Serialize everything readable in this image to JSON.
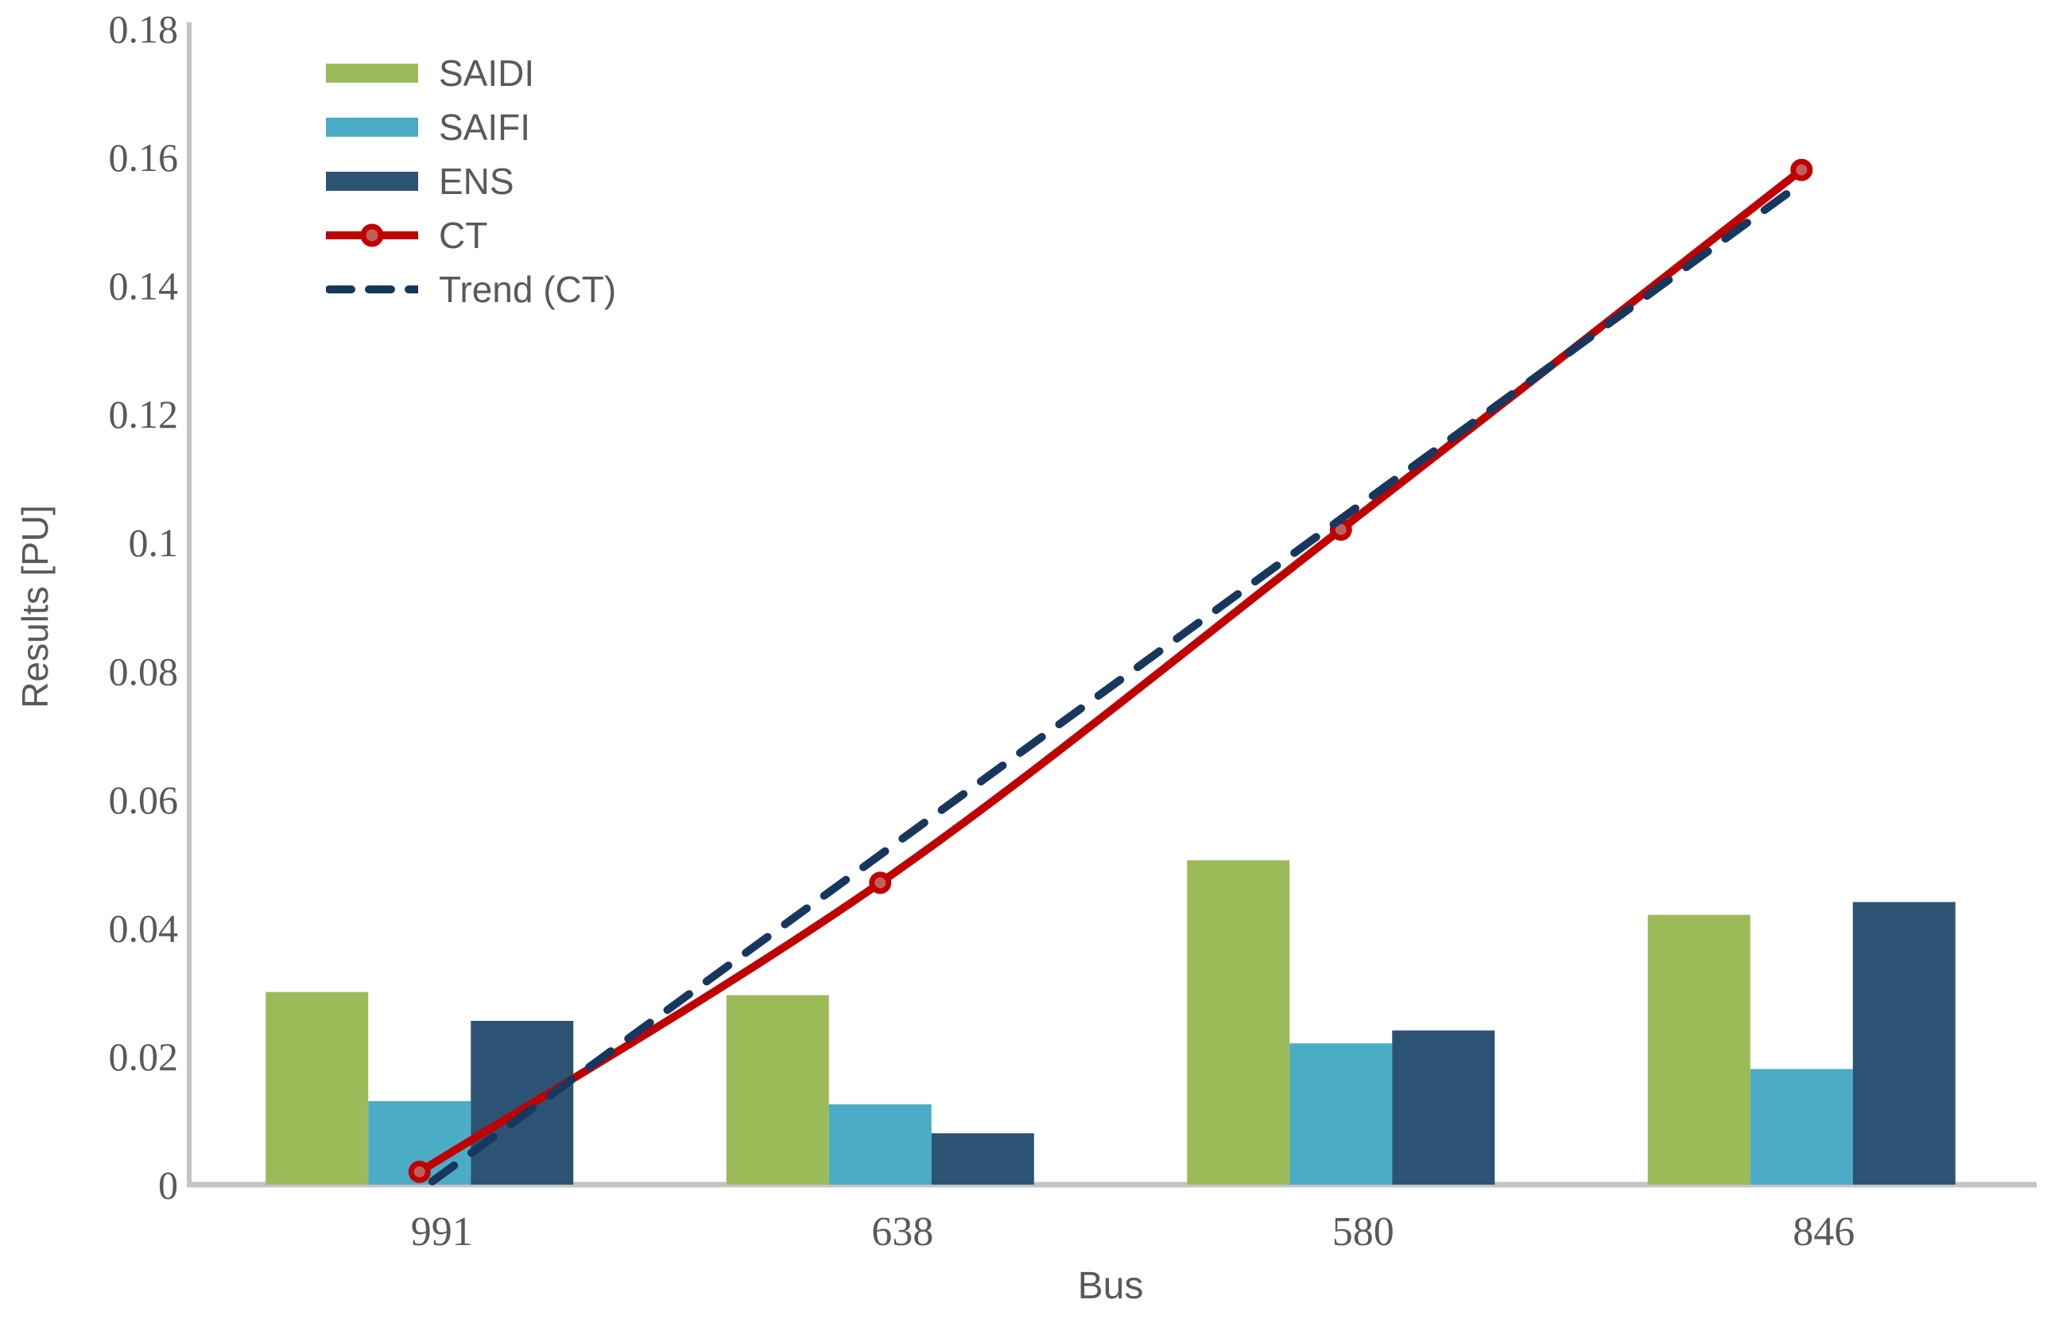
{
  "figure": {
    "background": "#FFFFFF",
    "axis_line_color": "#C4C4C4",
    "tick_label_color": "#595959",
    "title_color": "#595959"
  },
  "legend": [
    {
      "label": "SAIDI",
      "type": "bar",
      "color": "#9BBB59"
    },
    {
      "label": "SAIFI",
      "type": "bar",
      "color": "#4BACC6"
    },
    {
      "label": "ENS",
      "type": "bar",
      "color": "#2C5274"
    },
    {
      "label": "CT",
      "type": "line-marker",
      "color": "#C00000",
      "marker_fill": "#BF605D"
    },
    {
      "label": "Trend (CT)",
      "type": "dashed-line",
      "color": "#17375E"
    }
  ],
  "chart_data": {
    "type": "bar",
    "subtype": "grouped bars with line series and dashed linear trendline",
    "categories": [
      "991",
      "638",
      "580",
      "846"
    ],
    "series": [
      {
        "name": "SAIDI",
        "type": "bar",
        "color": "#9BBB59",
        "values": [
          0.03,
          0.0295,
          0.0505,
          0.042
        ]
      },
      {
        "name": "SAIFI",
        "type": "bar",
        "color": "#4BACC6",
        "values": [
          0.013,
          0.0125,
          0.022,
          0.018
        ]
      },
      {
        "name": "ENS",
        "type": "bar",
        "color": "#2C5274",
        "values": [
          0.0255,
          0.008,
          0.024,
          0.044
        ]
      },
      {
        "name": "CT",
        "type": "line",
        "color": "#C00000",
        "marker": "circle",
        "marker_fill": "#BF605D",
        "marker_edge": "#C00000",
        "values": [
          0.002,
          0.047,
          0.102,
          0.158
        ]
      },
      {
        "name": "Trend (CT)",
        "type": "trendline",
        "style": "dashed",
        "color": "#17375E",
        "values": [
          0.0005,
          0.0518,
          0.1032,
          0.1545
        ]
      }
    ],
    "title": "",
    "xlabel": "Bus",
    "ylabel": "Results [PU]",
    "ylim": [
      0,
      0.18
    ],
    "y_tick_labels": [
      "0",
      "0.02",
      "0.04",
      "0.06",
      "0.08",
      "0.1",
      "0.12",
      "0.14",
      "0.16",
      "0.18"
    ],
    "grid": false,
    "legend_position": "upper-left inside plot"
  }
}
